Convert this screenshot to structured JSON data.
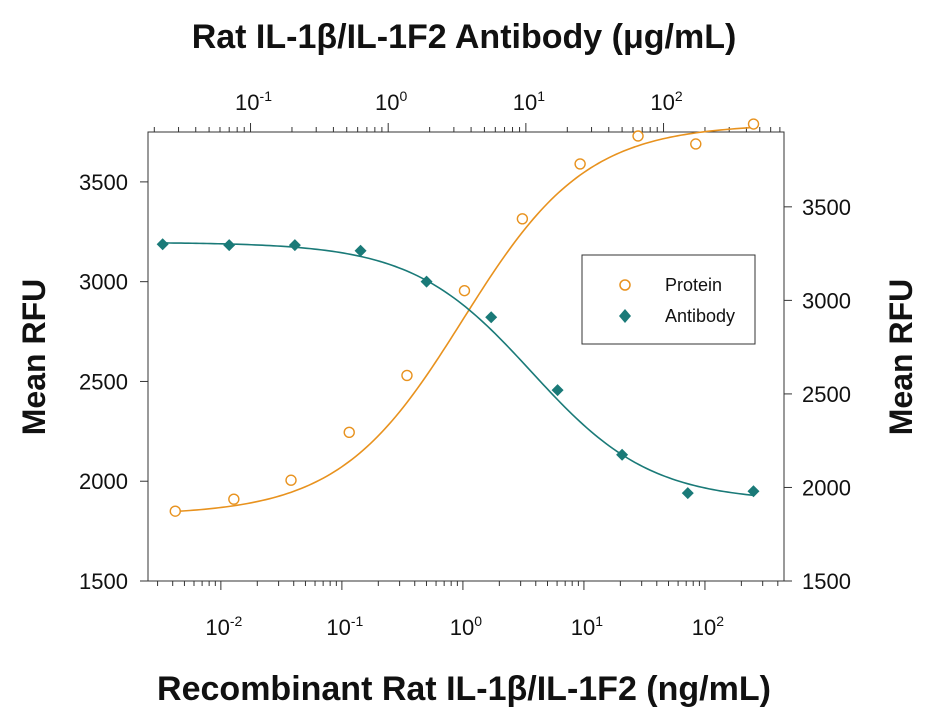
{
  "chart_data": {
    "type": "scatter",
    "title_top": "Rat IL-1β/IL-1F2 Antibody (μg/mL)",
    "xlabel": "Recombinant Rat IL-1β/IL-1F2 (ng/mL)",
    "ylabel_left": "Mean RFU",
    "ylabel_right": "Mean RFU",
    "x_scale": "log",
    "x_bottom_range": [
      0.0025,
      450
    ],
    "x_top_range": [
      0.018,
      750
    ],
    "y_left_range": [
      1500,
      3750
    ],
    "y_right_range": [
      1500,
      3900
    ],
    "y_left_ticks": [
      "1500",
      "2000",
      "2500",
      "3000",
      "3500"
    ],
    "y_right_ticks": [
      "1500",
      "2000",
      "2500",
      "3000",
      "3500"
    ],
    "x_bottom_ticks": [
      {
        "base": "10",
        "exp": "-2"
      },
      {
        "base": "10",
        "exp": "-1"
      },
      {
        "base": "10",
        "exp": "0"
      },
      {
        "base": "10",
        "exp": "1"
      },
      {
        "base": "10",
        "exp": "2"
      }
    ],
    "x_top_ticks": [
      {
        "base": "10",
        "exp": "-1"
      },
      {
        "base": "10",
        "exp": "0"
      },
      {
        "base": "10",
        "exp": "1"
      },
      {
        "base": "10",
        "exp": "2"
      }
    ],
    "legend_position": "upper-right",
    "series": [
      {
        "name": "Protein",
        "axis": "left/bottom",
        "color": "#E8921E",
        "marker": "open-circle",
        "points": [
          {
            "x": 0.0042,
            "y": 1850
          },
          {
            "x": 0.0128,
            "y": 1910
          },
          {
            "x": 0.038,
            "y": 2005
          },
          {
            "x": 0.115,
            "y": 2245
          },
          {
            "x": 0.345,
            "y": 2530
          },
          {
            "x": 1.03,
            "y": 2955
          },
          {
            "x": 3.1,
            "y": 3315
          },
          {
            "x": 9.3,
            "y": 3590
          },
          {
            "x": 28,
            "y": 3730
          },
          {
            "x": 84,
            "y": 3690
          },
          {
            "x": 252,
            "y": 3790
          }
        ],
        "fit": {
          "bottom": 1830,
          "top": 3790,
          "ec50": 1.0,
          "hill": 0.85
        }
      },
      {
        "name": "Antibody",
        "axis": "right/top",
        "color": "#1A7A78",
        "marker": "filled-diamond",
        "points": [
          {
            "x": 0.023,
            "y": 3300
          },
          {
            "x": 0.07,
            "y": 3295
          },
          {
            "x": 0.21,
            "y": 3295
          },
          {
            "x": 0.63,
            "y": 3265
          },
          {
            "x": 1.9,
            "y": 3100
          },
          {
            "x": 5.6,
            "y": 2910
          },
          {
            "x": 17,
            "y": 2520
          },
          {
            "x": 50,
            "y": 2175
          },
          {
            "x": 150,
            "y": 1970
          },
          {
            "x": 450,
            "y": 1980
          }
        ],
        "fit": {
          "top": 3310,
          "bottom": 1925,
          "ec50": 11,
          "hill": 1.0
        }
      }
    ]
  }
}
